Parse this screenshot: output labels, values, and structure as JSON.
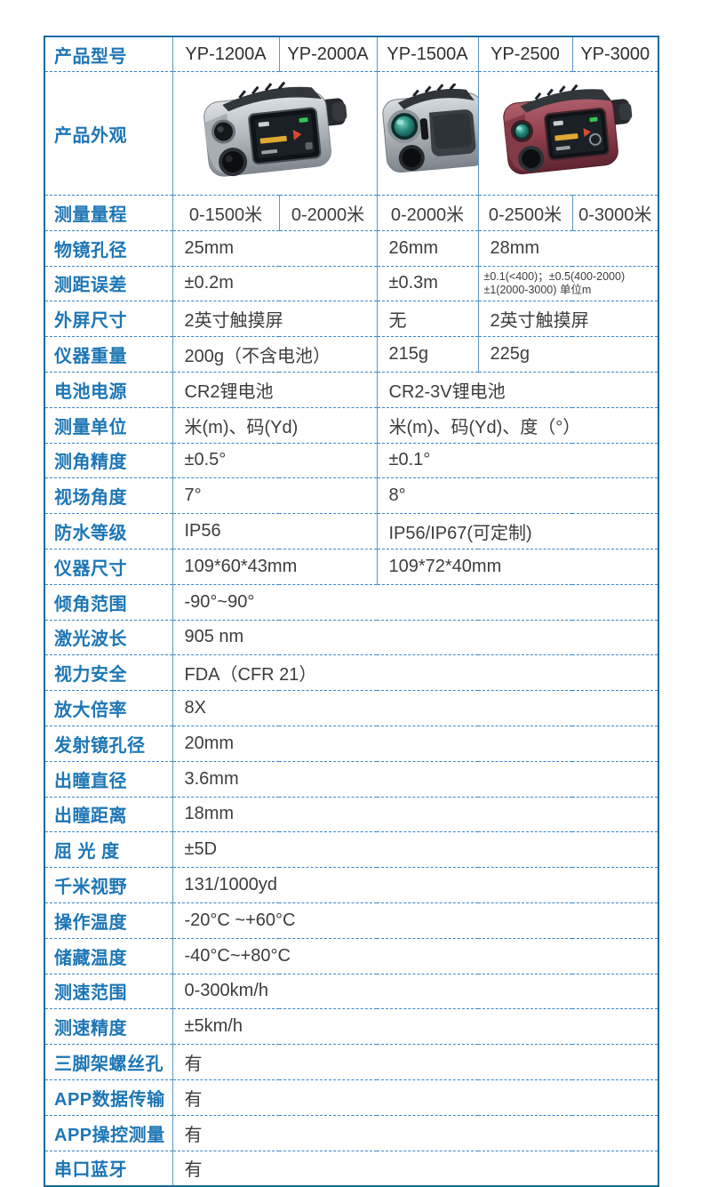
{
  "colors": {
    "label_blue": "#1d76b5",
    "value_text": "#3d3d3d",
    "outer_border": "#166a9d",
    "vertical_border": "#5b97cb",
    "dashed_border": "#3b86c6",
    "background": "#ffffff"
  },
  "table": {
    "header": {
      "label": "产品型号",
      "models": [
        "YP-1200A",
        "YP-2000A",
        "YP-1500A",
        "YP-2500",
        "YP-3000"
      ]
    },
    "appearance": {
      "label": "产品外观",
      "images": [
        {
          "template": "tpl-device-silver-display",
          "device": "rangefinder-silver-touchscreen-image",
          "span": 2
        },
        {
          "template": "tpl-device-silver-lens",
          "device": "rangefinder-silver-lens-image",
          "span": 1
        },
        {
          "template": "tpl-device-red-display",
          "device": "rangefinder-red-touchscreen-image",
          "span": 2
        }
      ]
    },
    "rows": [
      {
        "label": "测量量程",
        "cells": [
          {
            "t": "0-1500米",
            "s": 1,
            "a": "c"
          },
          {
            "t": "0-2000米",
            "s": 1,
            "a": "c"
          },
          {
            "t": "0-2000米",
            "s": 1,
            "a": "c"
          },
          {
            "t": "0-2500米",
            "s": 1,
            "a": "c"
          },
          {
            "t": "0-3000米",
            "s": 1,
            "a": "c"
          }
        ]
      },
      {
        "label": "物镜孔径",
        "cells": [
          {
            "t": "25mm",
            "s": 2
          },
          {
            "t": "26mm",
            "s": 1
          },
          {
            "t": "28mm",
            "s": 2
          }
        ]
      },
      {
        "label": "测距误差",
        "cells": [
          {
            "t": "±0.2m",
            "s": 2
          },
          {
            "t": "±0.3m",
            "s": 1
          },
          {
            "lines": [
              "±0.1(<400)；±0.5(400-2000)",
              "±1(2000-3000) 单位m"
            ],
            "s": 2
          }
        ]
      },
      {
        "label": "外屏尺寸",
        "cells": [
          {
            "t": "2英寸触摸屏",
            "s": 2
          },
          {
            "t": "无",
            "s": 1
          },
          {
            "t": "2英寸触摸屏",
            "s": 2
          }
        ]
      },
      {
        "label": "仪器重量",
        "cells": [
          {
            "t": "200g（不含电池）",
            "s": 2
          },
          {
            "t": "215g",
            "s": 1
          },
          {
            "t": "225g",
            "s": 2
          }
        ]
      },
      {
        "label": "电池电源",
        "cells": [
          {
            "t": "CR2锂电池",
            "s": 2
          },
          {
            "t": "CR2-3V锂电池",
            "s": 3
          }
        ]
      },
      {
        "label": "测量单位",
        "cells": [
          {
            "t": "米(m)、码(Yd)",
            "s": 2
          },
          {
            "t": "米(m)、码(Yd)、度（°）",
            "s": 3
          }
        ]
      },
      {
        "label": "测角精度",
        "cells": [
          {
            "t": "±0.5°",
            "s": 2
          },
          {
            "t": "±0.1°",
            "s": 3
          }
        ]
      },
      {
        "label": "视场角度",
        "cells": [
          {
            "t": "7°",
            "s": 2
          },
          {
            "t": "8°",
            "s": 3
          }
        ]
      },
      {
        "label": "防水等级",
        "cells": [
          {
            "t": "IP56",
            "s": 2
          },
          {
            "t": "IP56/IP67(可定制)",
            "s": 3
          }
        ]
      },
      {
        "label": "仪器尺寸",
        "cells": [
          {
            "t": "109*60*43mm",
            "s": 2
          },
          {
            "t": "109*72*40mm",
            "s": 3
          }
        ]
      },
      {
        "label": "倾角范围",
        "cells": [
          {
            "t": "-90°~90°",
            "s": 5
          }
        ]
      },
      {
        "label": "激光波长",
        "cells": [
          {
            "t": "905 nm",
            "s": 5
          }
        ]
      },
      {
        "label": "视力安全",
        "cells": [
          {
            "t": "FDA（CFR 21）",
            "s": 5
          }
        ]
      },
      {
        "label": "放大倍率",
        "cells": [
          {
            "t": "8X",
            "s": 5
          }
        ]
      },
      {
        "label": "发射镜孔径",
        "cells": [
          {
            "t": "20mm",
            "s": 5
          }
        ]
      },
      {
        "label": "出瞳直径",
        "cells": [
          {
            "t": "3.6mm",
            "s": 5
          }
        ]
      },
      {
        "label": "出瞳距离",
        "cells": [
          {
            "t": "18mm",
            "s": 5
          }
        ]
      },
      {
        "label": "屈 光 度",
        "cells": [
          {
            "t": "±5D",
            "s": 5
          }
        ]
      },
      {
        "label": "千米视野",
        "cells": [
          {
            "t": "131/1000yd",
            "s": 5
          }
        ]
      },
      {
        "label": "操作温度",
        "cells": [
          {
            "t": "-20°C ~+60°C",
            "s": 5
          }
        ]
      },
      {
        "label": "储藏温度",
        "cells": [
          {
            "t": " -40°C~+80°C",
            "s": 5
          }
        ]
      },
      {
        "label": "测速范围",
        "cells": [
          {
            "t": "0-300km/h",
            "s": 5
          }
        ]
      },
      {
        "label": "测速精度",
        "cells": [
          {
            "t": " ±5km/h",
            "s": 5
          }
        ]
      },
      {
        "label": "三脚架螺丝孔",
        "cells": [
          {
            "t": "有",
            "s": 5
          }
        ]
      },
      {
        "label": "APP数据传输",
        "cells": [
          {
            "t": "有",
            "s": 5
          }
        ]
      },
      {
        "label": "APP操控测量",
        "cells": [
          {
            "t": "有",
            "s": 5
          }
        ]
      },
      {
        "label": "串口蓝牙",
        "cells": [
          {
            "t": "有",
            "s": 5
          }
        ]
      }
    ]
  }
}
